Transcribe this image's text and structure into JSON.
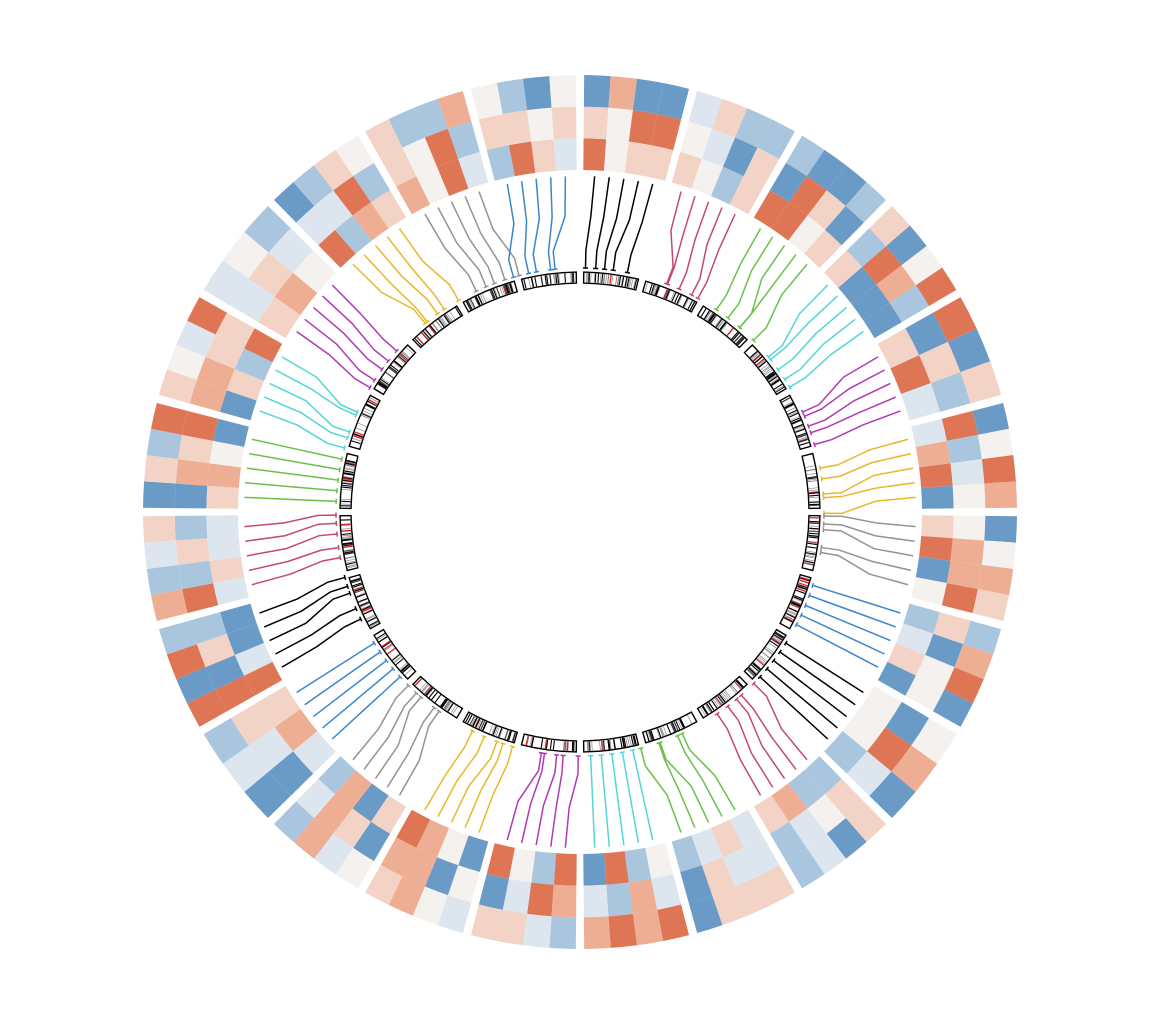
{
  "diagram": {
    "type": "circos",
    "title": "",
    "sector_count": 24,
    "heatmap_rows": 3,
    "heatmap_palette": [
      "#6a9ac6",
      "#a9c6de",
      "#dde6ee",
      "#f4f1ee",
      "#f3d3c5",
      "#eeae93",
      "#de7656"
    ],
    "label_track_colors": [
      "#000000",
      "#c5496b",
      "#6bc049",
      "#52d6d6",
      "#b13ab4",
      "#e8b82c",
      "#939393",
      "#3a86cc"
    ],
    "link_sequence": [
      [
        0,
        7
      ],
      [
        1,
        6
      ],
      [
        2,
        0
      ],
      [
        3,
        6
      ],
      [
        4,
        3
      ],
      [
        5,
        3
      ],
      [
        6,
        2
      ],
      [
        7,
        1
      ],
      [
        0,
        5
      ],
      [
        1,
        7
      ],
      [
        2,
        0
      ],
      [
        3,
        5
      ],
      [
        4,
        2
      ],
      [
        5,
        4
      ],
      [
        6,
        3
      ],
      [
        7,
        1
      ],
      [
        0,
        6
      ],
      [
        1,
        6
      ],
      [
        2,
        5
      ],
      [
        3,
        7
      ],
      [
        4,
        7
      ],
      [
        5,
        6
      ],
      [
        6,
        0
      ],
      [
        7,
        4
      ]
    ],
    "ideogram": {
      "band_color": "#000000",
      "highlight_color": "#e0242b"
    }
  }
}
